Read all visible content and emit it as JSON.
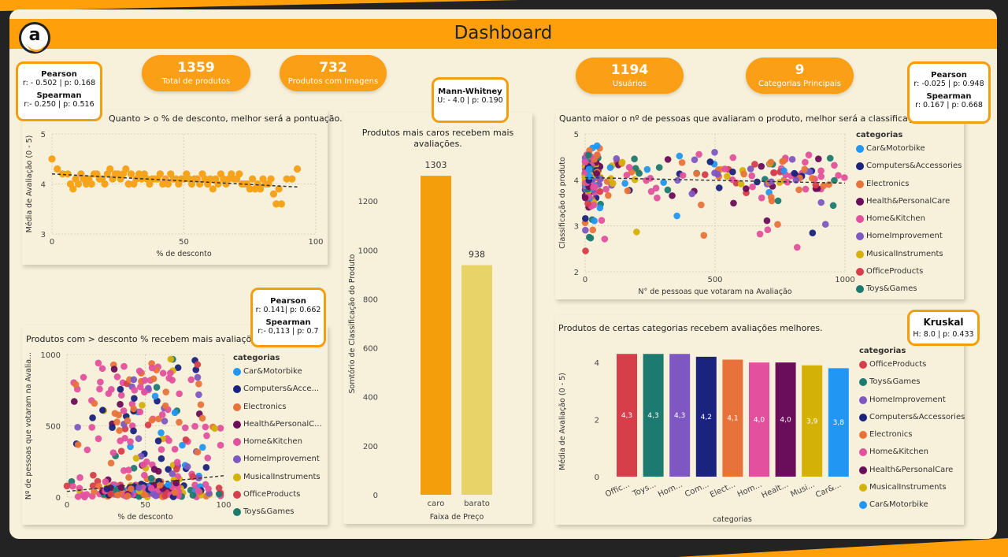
{
  "header": {
    "title": "Dashboard",
    "logo_text": "a"
  },
  "kpis": [
    {
      "value": "1359",
      "label": "Total de produtos"
    },
    {
      "value": "732",
      "label": "Produtos com Imagens"
    },
    {
      "value": "1194",
      "label": "Usuários"
    },
    {
      "value": "9",
      "label": "Categorias Principais"
    }
  ],
  "stats": {
    "discount_rating": {
      "h1": "Pearson",
      "l1": "r: - 0.502 | p: 0.168",
      "h2": "Spearman",
      "l2": "r:- 0.250 | p: 0.516"
    },
    "price": {
      "h1": "Mann-Whitney",
      "l1": "U: - 4.0 | p: 0.190"
    },
    "votes_rating": {
      "h1": "Pearson",
      "l1": "r: -0.025 | p: 0.948",
      "h2": "Spearman",
      "l2": "r: 0.167 | p: 0.668"
    },
    "discount_votes": {
      "h1": "Pearson",
      "l1": "r: 0.141| p: 0.662",
      "h2": "Spearman",
      "l2": "r:- 0,113 | p: 0.7"
    },
    "categories": {
      "h1": "Kruskal",
      "l1": "H: 8.0 | p: 0.433"
    }
  },
  "colors": {
    "accent": "#ff9f0a",
    "background": "#f7f0da",
    "categories": {
      "Car&Motorbike": "#2196f3",
      "Computers&Accessories": "#1a237e",
      "Electronics": "#e8733a",
      "Health&PersonalCare": "#6a0d5a",
      "Home&Kitchen": "#e3519e",
      "HomeImprovement": "#7e57c2",
      "MusicalInstruments": "#d4b106",
      "OfficeProducts": "#d63e4a",
      "Toys&Games": "#1d7a70"
    }
  },
  "charts": {
    "discount_rating": {
      "title": "Quanto > o % de desconto, melhor será a pontuação."
    },
    "price_rating": {
      "title_line1": "Produtos mais caros recebem mais",
      "title_line2": "avaliações."
    },
    "votes_rating": {
      "title": "Quanto maior o nº de pessoas que avaliaram o produto, melhor será a classificação."
    },
    "discount_votes": {
      "title": "Produtos com > desconto % recebem mais avaliações."
    },
    "category_rating": {
      "title": "Produtos de certas categorias recebem avaliações melhores."
    }
  },
  "legend_a": {
    "title": "categorias",
    "items": [
      "Car&Motorbike",
      "Computers&Accessories",
      "Electronics",
      "Health&PersonalCare",
      "Home&Kitchen",
      "HomeImprovement",
      "MusicalInstruments",
      "OfficeProducts",
      "Toys&Games"
    ]
  },
  "legend_b": {
    "title": "categorias",
    "items": [
      "Car&Motorbike",
      "Computers&Acce...",
      "Electronics",
      "Health&PersonalC...",
      "Home&Kitchen",
      "HomeImprovement",
      "MusicalInstruments",
      "OfficeProducts",
      "Toys&Games"
    ]
  },
  "legend_c": {
    "title": "categorias",
    "items": [
      "OfficeProducts",
      "Toys&Games",
      "HomeImprovement",
      "Computers&Accessories",
      "Electronics",
      "Home&Kitchen",
      "Health&PersonalCare",
      "MusicalInstruments",
      "Car&Motorbike"
    ]
  },
  "chart_data": [
    {
      "type": "scatter",
      "title": "Quanto > o % de desconto, melhor será a pontuação.",
      "xlabel": "% de desconto",
      "ylabel": "Média de Avaliação (0 - 5)",
      "xlim": [
        0,
        100
      ],
      "ylim": [
        3,
        5
      ],
      "xticks": [
        "0",
        "50",
        "100"
      ],
      "yticks": [
        "3",
        "4",
        "5"
      ],
      "points": [
        [
          0,
          4.5
        ],
        [
          2,
          4.3
        ],
        [
          4,
          4.2
        ],
        [
          6,
          4.2
        ],
        [
          7,
          4.0
        ],
        [
          8,
          3.9
        ],
        [
          9,
          4.1
        ],
        [
          10,
          4.0
        ],
        [
          11,
          4.2
        ],
        [
          12,
          4.1
        ],
        [
          13,
          4.0
        ],
        [
          14,
          4.1
        ],
        [
          15,
          4.0
        ],
        [
          16,
          4.2
        ],
        [
          17,
          4.2
        ],
        [
          18,
          4.1
        ],
        [
          19,
          4.1
        ],
        [
          20,
          4.0
        ],
        [
          21,
          4.2
        ],
        [
          22,
          4.3
        ],
        [
          23,
          4.1
        ],
        [
          24,
          4.2
        ],
        [
          25,
          4.2
        ],
        [
          26,
          4.1
        ],
        [
          27,
          4.2
        ],
        [
          28,
          4.3
        ],
        [
          29,
          4.0
        ],
        [
          30,
          4.2
        ],
        [
          31,
          4.0
        ],
        [
          32,
          4.1
        ],
        [
          33,
          4.2
        ],
        [
          34,
          4.1
        ],
        [
          35,
          4.2
        ],
        [
          36,
          4.1
        ],
        [
          37,
          4.0
        ],
        [
          38,
          4.1
        ],
        [
          39,
          4.1
        ],
        [
          40,
          4.1
        ],
        [
          41,
          4.2
        ],
        [
          42,
          4.0
        ],
        [
          43,
          4.1
        ],
        [
          44,
          4.0
        ],
        [
          45,
          4.2
        ],
        [
          46,
          4.1
        ],
        [
          47,
          4.1
        ],
        [
          48,
          4.0
        ],
        [
          49,
          4.1
        ],
        [
          50,
          4.1
        ],
        [
          51,
          4.2
        ],
        [
          52,
          4.1
        ],
        [
          53,
          4.0
        ],
        [
          54,
          4.1
        ],
        [
          55,
          4.1
        ],
        [
          56,
          4.0
        ],
        [
          57,
          4.2
        ],
        [
          58,
          4.1
        ],
        [
          59,
          4.0
        ],
        [
          60,
          4.1
        ],
        [
          61,
          3.9
        ],
        [
          62,
          4.1
        ],
        [
          63,
          4.0
        ],
        [
          64,
          4.2
        ],
        [
          65,
          4.1
        ],
        [
          66,
          4.0
        ],
        [
          67,
          4.1
        ],
        [
          68,
          4.2
        ],
        [
          69,
          4.1
        ],
        [
          70,
          4.1
        ],
        [
          71,
          4.2
        ],
        [
          72,
          4.0
        ],
        [
          73,
          4.0
        ],
        [
          74,
          4.0
        ],
        [
          75,
          3.9
        ],
        [
          76,
          4.1
        ],
        [
          77,
          3.9
        ],
        [
          78,
          4.0
        ],
        [
          79,
          3.9
        ],
        [
          80,
          4.1
        ],
        [
          81,
          4.0
        ],
        [
          82,
          4.0
        ],
        [
          83,
          4.1
        ],
        [
          84,
          3.8
        ],
        [
          85,
          3.6
        ],
        [
          86,
          3.9
        ],
        [
          87,
          3.6
        ],
        [
          89,
          4.1
        ],
        [
          91,
          4.1
        ],
        [
          93,
          4.3
        ]
      ],
      "trend": [
        [
          0,
          4.2
        ],
        [
          93,
          3.94
        ]
      ]
    },
    {
      "type": "bar",
      "title": "Produtos mais caros recebem mais avaliações.",
      "xlabel": "Faixa de Preço",
      "ylabel": "Somtório de Classificação do Produto",
      "categories": [
        "caro",
        "barato"
      ],
      "values": [
        1303,
        938
      ],
      "colors": [
        "#f59e0b",
        "#e8d368"
      ],
      "ylim": [
        0,
        1400
      ],
      "yticks": [
        0,
        200,
        400,
        600,
        800,
        1000,
        1200
      ]
    },
    {
      "type": "scatter",
      "title": "Quanto maior o nº de pessoas que avaliaram o produto, melhor será a classificação.",
      "xlabel": "N° de pessoas que votaram na Avaliação",
      "ylabel": "Classificação do produto",
      "xlim": [
        0,
        1000
      ],
      "ylim": [
        2,
        5
      ],
      "xticks": [
        "0",
        "500",
        "1000"
      ],
      "yticks": [
        "2",
        "3",
        "4",
        "5"
      ],
      "note": "Hundreds of points colored by category; densest between 0 and 60 votes and ratings 3.5–4.6.",
      "trend": [
        [
          0,
          4.05
        ],
        [
          1000,
          3.93
        ]
      ]
    },
    {
      "type": "scatter",
      "title": "Produtos com > desconto % recebem mais avaliações.",
      "xlabel": "% de desconto",
      "ylabel": "Nº de pessoas que votaram na Avalia...",
      "xlim": [
        0,
        100
      ],
      "ylim": [
        0,
        1000
      ],
      "xticks": [
        "0",
        "50",
        "100"
      ],
      "yticks": [
        "0",
        "500",
        "1000"
      ],
      "note": "Hundreds of points colored by category; mostly pink (Home&Kitchen), concentrated between 30–70% discount.",
      "trend": [
        [
          0,
          40
        ],
        [
          100,
          150
        ]
      ]
    },
    {
      "type": "bar",
      "title": "Produtos de certas categorias recebem avaliações melhores.",
      "xlabel": "categorias",
      "ylabel": "Média de Avaliação (0 - 5)",
      "categories": [
        "Offic...",
        "Toys...",
        "Hom...",
        "Com...",
        "Elect...",
        "Hom...",
        "Healt...",
        "Musi...",
        "Car&..."
      ],
      "values": [
        4.3,
        4.3,
        4.3,
        4.2,
        4.1,
        4.0,
        4.0,
        3.9,
        3.8
      ],
      "labels": [
        "4,3",
        "4,3",
        "4,3",
        "4,2",
        "4,1",
        "4,0",
        "4,0",
        "3,9",
        "3,8"
      ],
      "colors": [
        "#d63e4a",
        "#1d7a70",
        "#7e57c2",
        "#1a237e",
        "#e8733a",
        "#e3519e",
        "#6a0d5a",
        "#d4b106",
        "#2196f3"
      ],
      "ylim": [
        0,
        4.5
      ],
      "yticks": [
        0,
        2,
        4
      ]
    }
  ]
}
